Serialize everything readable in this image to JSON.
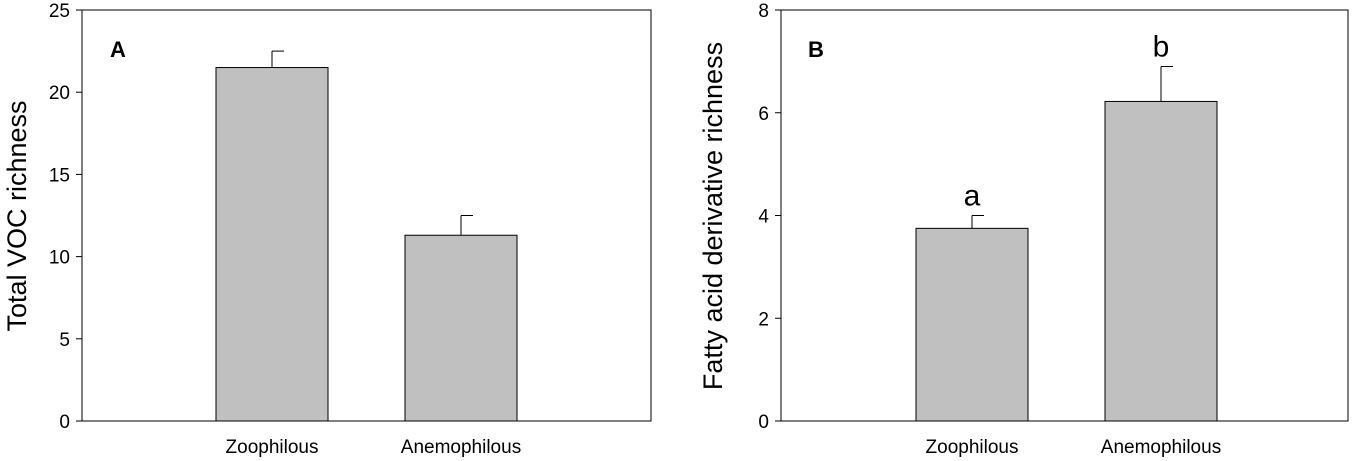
{
  "chart_data": [
    {
      "type": "bar",
      "panel_label": "A",
      "categories": [
        "Zoophilous",
        "Anemophilous"
      ],
      "values": [
        21.5,
        11.3
      ],
      "errors": [
        1.0,
        1.2
      ],
      "significance_labels": [
        "",
        ""
      ],
      "xlabel": "",
      "ylabel": "Total VOC richness",
      "ylim": [
        0,
        25
      ],
      "yticks": [
        0,
        5,
        10,
        15,
        20,
        25
      ],
      "grid": false,
      "bar_color": "#c0c0c0"
    },
    {
      "type": "bar",
      "panel_label": "B",
      "categories": [
        "Zoophilous",
        "Anemophilous"
      ],
      "values": [
        3.75,
        6.22
      ],
      "errors": [
        0.25,
        0.68
      ],
      "significance_labels": [
        "a",
        "b"
      ],
      "xlabel": "",
      "ylabel": "Fatty acid derivative richness",
      "ylim": [
        0,
        8
      ],
      "yticks": [
        0,
        2,
        4,
        6,
        8
      ],
      "grid": false,
      "bar_color": "#c0c0c0"
    }
  ]
}
